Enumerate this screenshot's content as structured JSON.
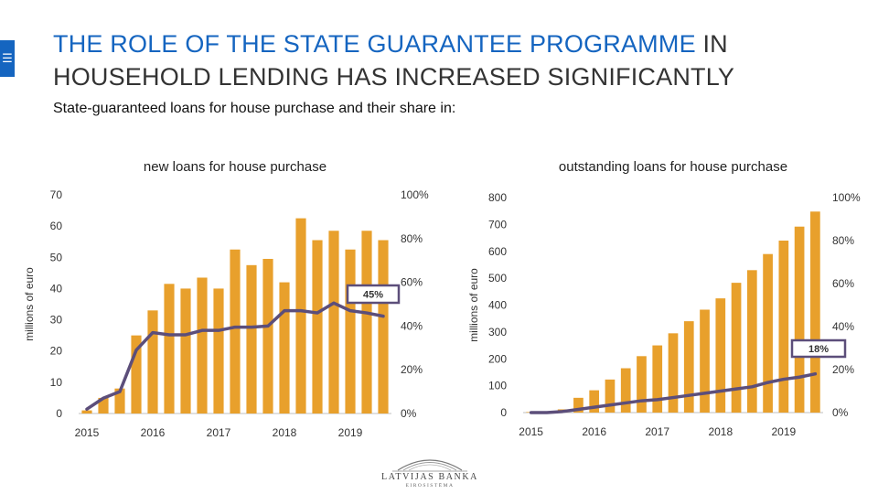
{
  "slide": {
    "title_highlight": "THE ROLE OF THE STATE GUARANTEE PROGRAMME",
    "title_rest": " IN HOUSEHOLD LENDING HAS INCREASED SIGNIFICANTLY",
    "subtitle": "State-guaranteed loans for house purchase and their share in:",
    "menu_icon": "hamburger-menu-icon",
    "highlight_color": "#1565c0",
    "logo_name": "LATVIJAS BANKA",
    "logo_sub": "EIROSISTĒMA"
  },
  "chart_data": [
    {
      "type": "bar",
      "title": "new loans for house purchase",
      "ylabel": "millions of euro",
      "ylim": [
        0,
        70
      ],
      "yticks": [
        0,
        10,
        20,
        30,
        40,
        50,
        60,
        70
      ],
      "y2lim": [
        0,
        100
      ],
      "y2ticks": [
        "0%",
        "20%",
        "40%",
        "60%",
        "80%",
        "100%"
      ],
      "x_labels": [
        "2015",
        "2016",
        "2017",
        "2018",
        "2019"
      ],
      "categories": [
        "2015Q1",
        "2015Q2",
        "2015Q3",
        "2015Q4",
        "2016Q1",
        "2016Q2",
        "2016Q3",
        "2016Q4",
        "2017Q1",
        "2017Q2",
        "2017Q3",
        "2017Q4",
        "2018Q1",
        "2018Q2",
        "2018Q3",
        "2018Q4",
        "2019Q1",
        "2019Q2",
        "2019Q3"
      ],
      "bar_color": "#e8a02c",
      "line_color": "#5c4e7a",
      "series": [
        {
          "axis": "left",
          "kind": "bar",
          "values": [
            1,
            5,
            8,
            25,
            33,
            41.5,
            40,
            43.5,
            40,
            52.5,
            47.5,
            49.5,
            42,
            62.5,
            55.5,
            58.5,
            52.5,
            58.5,
            55.5
          ]
        },
        {
          "axis": "right",
          "kind": "line",
          "values": [
            2,
            7,
            10,
            29,
            37,
            36,
            36,
            38,
            38,
            39.5,
            39.5,
            40,
            47,
            47,
            46,
            50.5,
            47,
            46,
            44.5
          ]
        }
      ],
      "annotation": {
        "text": "45%"
      }
    },
    {
      "type": "bar",
      "title": "outstanding loans for house purchase",
      "ylabel": "millions of euro",
      "ylim": [
        0,
        800
      ],
      "yticks": [
        0,
        100,
        200,
        300,
        400,
        500,
        600,
        700,
        800
      ],
      "y2lim": [
        0,
        100
      ],
      "y2ticks": [
        "0%",
        "20%",
        "40%",
        "60%",
        "80%",
        "100%"
      ],
      "x_labels": [
        "2015",
        "2016",
        "2017",
        "2018",
        "2019"
      ],
      "categories": [
        "2015Q1",
        "2015Q2",
        "2015Q3",
        "2015Q4",
        "2016Q1",
        "2016Q2",
        "2016Q3",
        "2016Q4",
        "2017Q1",
        "2017Q2",
        "2017Q3",
        "2017Q4",
        "2018Q1",
        "2018Q2",
        "2018Q3",
        "2018Q4",
        "2019Q1",
        "2019Q2",
        "2019Q3"
      ],
      "bar_color": "#e8a02c",
      "line_color": "#5c4e7a",
      "series": [
        {
          "axis": "left",
          "kind": "bar",
          "values": [
            2,
            5,
            12,
            55,
            83,
            123,
            165,
            210,
            250,
            295,
            340,
            383,
            425,
            483,
            530,
            590,
            640,
            692,
            748
          ]
        },
        {
          "axis": "right",
          "kind": "line",
          "values": [
            0,
            0,
            0.5,
            1.5,
            2.5,
            3.5,
            4.5,
            5.5,
            6,
            7,
            8,
            9,
            10,
            11,
            12,
            14,
            15.5,
            16.5,
            18
          ]
        }
      ],
      "annotation": {
        "text": "18%"
      }
    }
  ]
}
